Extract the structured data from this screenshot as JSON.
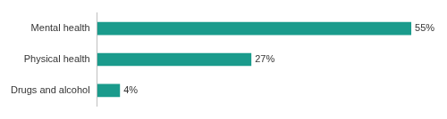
{
  "chart_data": {
    "type": "bar",
    "orientation": "horizontal",
    "categories": [
      "Mental health",
      "Physical health",
      "Drugs and alcohol"
    ],
    "values": [
      55,
      27,
      4
    ],
    "value_labels": [
      "55%",
      "27%",
      "4%"
    ],
    "color": "#1a9b8c",
    "xlim": [
      0,
      60
    ],
    "grid": false,
    "data_labels": true,
    "tick_labels": "y"
  }
}
